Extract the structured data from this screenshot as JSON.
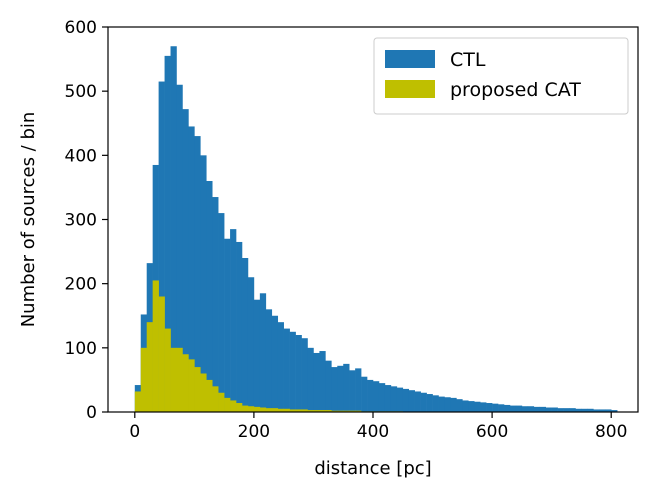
{
  "chart_data": {
    "type": "bar",
    "title": "",
    "xlabel": "distance [pc]",
    "ylabel": "Number of sources / bin",
    "xlim": [
      -45,
      845
    ],
    "ylim": [
      0,
      600
    ],
    "xticks": [
      0,
      200,
      400,
      600,
      800
    ],
    "yticks": [
      0,
      100,
      200,
      300,
      400,
      500,
      600
    ],
    "grid": false,
    "legend_position": "top-right",
    "bin_width": 10,
    "bin_start": 0,
    "series": [
      {
        "name": "CTL",
        "color": "#1f77b4",
        "values": [
          42,
          152,
          232,
          385,
          515,
          555,
          570,
          510,
          472,
          445,
          430,
          400,
          360,
          335,
          310,
          270,
          285,
          265,
          240,
          210,
          175,
          185,
          160,
          150,
          140,
          130,
          125,
          120,
          115,
          100,
          92,
          95,
          80,
          70,
          72,
          75,
          65,
          68,
          55,
          50,
          48,
          45,
          42,
          40,
          38,
          36,
          34,
          32,
          30,
          28,
          26,
          24,
          23,
          22,
          20,
          18,
          17,
          16,
          15,
          14,
          13,
          12,
          11,
          10,
          10,
          9,
          9,
          8,
          8,
          7,
          7,
          6,
          6,
          6,
          5,
          5,
          5,
          4,
          4,
          4,
          3
        ]
      },
      {
        "name": "proposed CAT",
        "color": "#bfbf00",
        "values": [
          32,
          100,
          140,
          205,
          180,
          130,
          100,
          100,
          90,
          82,
          70,
          60,
          50,
          40,
          30,
          22,
          18,
          14,
          10,
          9,
          8,
          7,
          6,
          6,
          5,
          5,
          4,
          4,
          4,
          3,
          3,
          3,
          3,
          2,
          2,
          2,
          2,
          2,
          1,
          1,
          1,
          1,
          1,
          1,
          1,
          0,
          0,
          0,
          0,
          0,
          0,
          0,
          0,
          0,
          0,
          0,
          0,
          0,
          0,
          0,
          0,
          0,
          0,
          0,
          0,
          0,
          0,
          0,
          0,
          0,
          0,
          0,
          0,
          0,
          0,
          0,
          0,
          0,
          0,
          0,
          0
        ]
      }
    ]
  }
}
